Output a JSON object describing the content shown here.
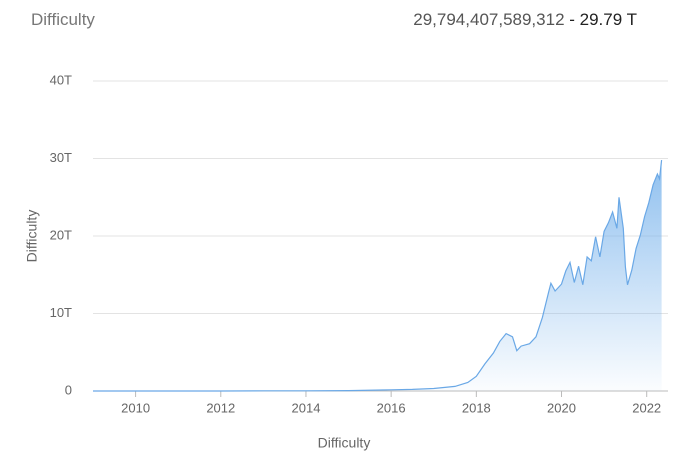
{
  "header": {
    "title": "Difficulty",
    "value": "29,794,407,589,312",
    "value_short": "- 29.79 T"
  },
  "chart_data": {
    "type": "area",
    "y_label": "Difficulty",
    "x_label": "Difficulty",
    "color": "#6aa8e6",
    "xlim": [
      2009,
      2022.5
    ],
    "ylim": [
      0,
      40
    ],
    "xticks": [
      2010,
      2012,
      2014,
      2016,
      2018,
      2020,
      2022
    ],
    "yticks": [
      0,
      {
        "value": 10,
        "label": "10T"
      },
      {
        "value": 20,
        "label": "20T"
      },
      {
        "value": 30,
        "label": "30T"
      },
      {
        "value": 40,
        "label": "40T"
      }
    ],
    "grid": true,
    "series": [
      {
        "name": "Difficulty",
        "color": "#6aa8e6",
        "x": [
          2009,
          2010,
          2011,
          2012,
          2013,
          2014,
          2015,
          2016,
          2016.5,
          2017,
          2017.5,
          2017.8,
          2018,
          2018.2,
          2018.4,
          2018.55,
          2018.7,
          2018.85,
          2018.95,
          2019.05,
          2019.25,
          2019.4,
          2019.55,
          2019.7,
          2019.75,
          2019.85,
          2020.0,
          2020.1,
          2020.2,
          2020.3,
          2020.4,
          2020.5,
          2020.6,
          2020.7,
          2020.8,
          2020.9,
          2021.0,
          2021.1,
          2021.2,
          2021.3,
          2021.35,
          2021.45,
          2021.5,
          2021.55,
          2021.65,
          2021.75,
          2021.85,
          2021.95,
          2022.05,
          2022.15,
          2022.25,
          2022.3,
          2022.35
        ],
        "values": [
          0,
          0,
          0.001,
          0.002,
          0.02,
          0.03,
          0.05,
          0.16,
          0.2,
          0.32,
          0.6,
          1.1,
          1.9,
          3.5,
          4.9,
          6.4,
          7.4,
          7.0,
          5.2,
          5.8,
          6.1,
          7.0,
          9.5,
          12.8,
          13.9,
          12.9,
          13.8,
          15.5,
          16.6,
          14.0,
          16.1,
          13.7,
          17.3,
          16.8,
          19.9,
          17.3,
          20.6,
          21.7,
          23.1,
          21.0,
          25.0,
          21.0,
          16.0,
          13.7,
          15.6,
          18.4,
          20.1,
          22.5,
          24.3,
          26.6,
          28.0,
          27.4,
          29.8
        ]
      }
    ]
  }
}
